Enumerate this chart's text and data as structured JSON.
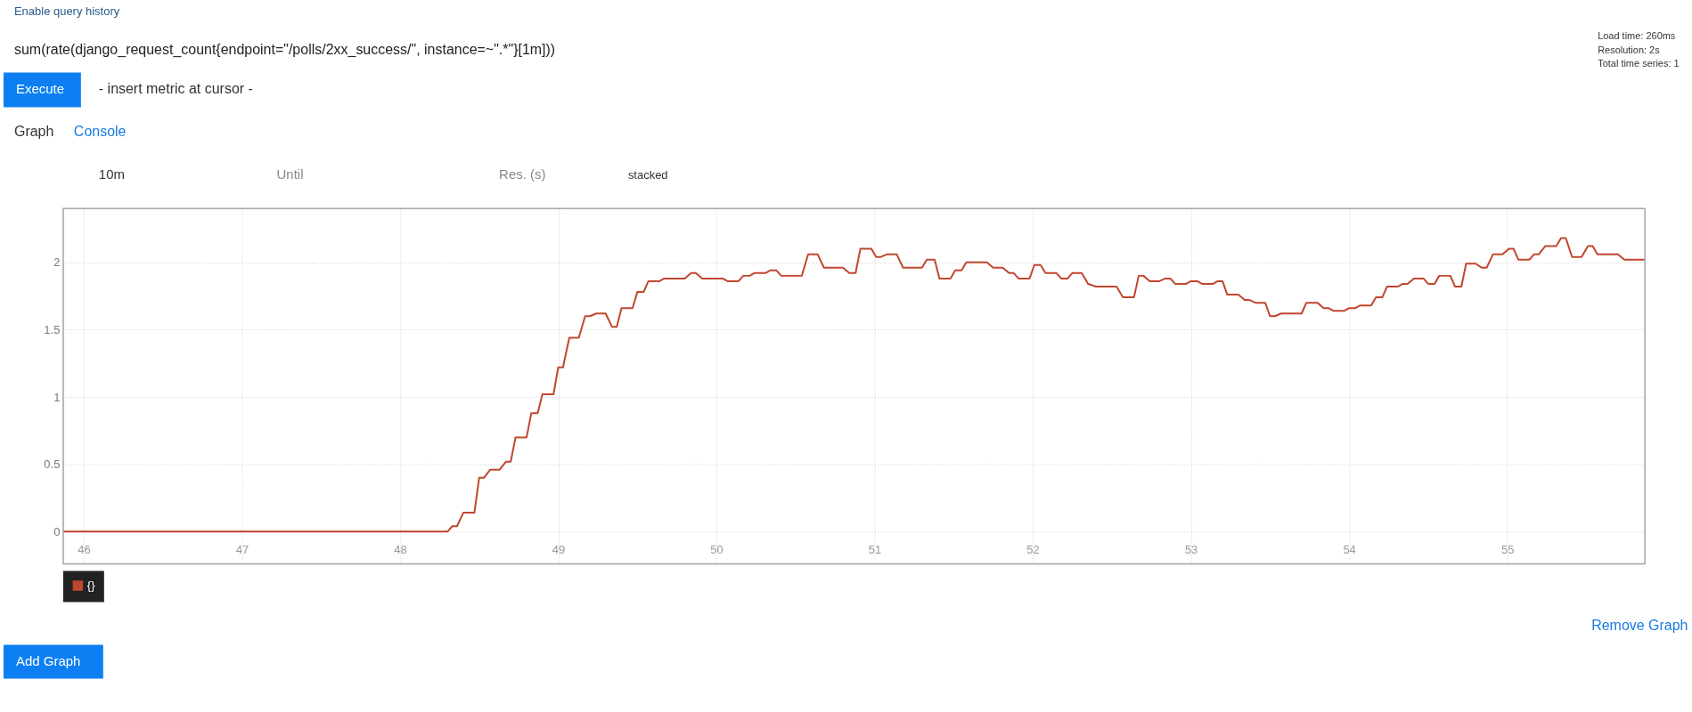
{
  "chart_data": {
    "type": "line",
    "title": "sum(rate(django_request_count{endpoint=\"/polls/2xx_success/\", instance=~\".*\"}[1m]))",
    "annotations": [
      "Enable query history",
      "Execute",
      "- insert metric at cursor -",
      "Graph",
      "Console",
      "10m",
      "Until",
      "Res. (s)",
      "stacked",
      "Load time: 260ms",
      "Resolution: 2s",
      "Total time series: 1",
      "Remove Graph",
      "Add Graph"
    ],
    "series": [
      {
        "name": "{}",
        "color": "#c1462f",
        "x": [
          45.87,
          48.3,
          48.33,
          48.36,
          48.4,
          48.47,
          48.5,
          48.53,
          48.57,
          48.63,
          48.67,
          48.7,
          48.73,
          48.8,
          48.83,
          48.87,
          48.9,
          48.97,
          49.0,
          49.03,
          49.07,
          49.13,
          49.17,
          49.2,
          49.24,
          49.3,
          49.34,
          49.37,
          49.4,
          49.47,
          49.5,
          49.54,
          49.57,
          49.64,
          49.67,
          49.8,
          49.84,
          49.87,
          49.91,
          50.04,
          50.07,
          50.14,
          50.17,
          50.21,
          50.24,
          50.31,
          50.34,
          50.38,
          50.41,
          50.54,
          50.58,
          50.64,
          50.68,
          50.8,
          50.84,
          50.88,
          50.91,
          50.98,
          51.01,
          51.04,
          51.08,
          51.14,
          51.18,
          51.3,
          51.33,
          51.38,
          51.41,
          51.48,
          51.51,
          51.55,
          51.58,
          51.71,
          51.75,
          51.81,
          51.85,
          51.88,
          51.91,
          51.98,
          52.01,
          52.05,
          52.08,
          52.15,
          52.18,
          52.22,
          52.25,
          52.31,
          52.35,
          52.4,
          52.53,
          52.57,
          52.64,
          52.67,
          52.7,
          52.74,
          52.8,
          52.84,
          52.87,
          52.9,
          52.97,
          53.0,
          53.04,
          53.07,
          53.14,
          53.17,
          53.2,
          53.23,
          53.3,
          53.34,
          53.37,
          53.41,
          53.47,
          53.5,
          53.53,
          53.57,
          53.7,
          53.73,
          53.8,
          53.84,
          53.87,
          53.9,
          53.97,
          54.0,
          54.04,
          54.07,
          54.14,
          54.17,
          54.21,
          54.24,
          54.31,
          54.34,
          54.37,
          54.41,
          54.47,
          54.5,
          54.54,
          54.57,
          54.64,
          54.67,
          54.71,
          54.74,
          54.8,
          54.84,
          54.87,
          54.91,
          54.97,
          55.01,
          55.04,
          55.07,
          55.14,
          55.17,
          55.2,
          55.24,
          55.31,
          55.34,
          55.37,
          55.41,
          55.47,
          55.51,
          55.54,
          55.57,
          55.7,
          55.74,
          55.87
        ],
        "values": [
          0,
          0,
          0.04,
          0.04,
          0.14,
          0.14,
          0.4,
          0.4,
          0.46,
          0.46,
          0.52,
          0.52,
          0.7,
          0.7,
          0.88,
          0.88,
          1.02,
          1.02,
          1.22,
          1.22,
          1.44,
          1.44,
          1.6,
          1.6,
          1.62,
          1.62,
          1.52,
          1.52,
          1.66,
          1.66,
          1.78,
          1.78,
          1.86,
          1.86,
          1.88,
          1.88,
          1.92,
          1.92,
          1.88,
          1.88,
          1.86,
          1.86,
          1.9,
          1.9,
          1.92,
          1.92,
          1.94,
          1.94,
          1.9,
          1.9,
          2.06,
          2.06,
          1.96,
          1.96,
          1.92,
          1.92,
          2.1,
          2.1,
          2.04,
          2.04,
          2.06,
          2.06,
          1.96,
          1.96,
          2.02,
          2.02,
          1.88,
          1.88,
          1.94,
          1.94,
          2.0,
          2.0,
          1.96,
          1.96,
          1.92,
          1.92,
          1.88,
          1.88,
          1.98,
          1.98,
          1.92,
          1.92,
          1.88,
          1.88,
          1.92,
          1.92,
          1.84,
          1.82,
          1.82,
          1.74,
          1.74,
          1.9,
          1.9,
          1.86,
          1.86,
          1.88,
          1.88,
          1.84,
          1.84,
          1.86,
          1.86,
          1.84,
          1.84,
          1.86,
          1.86,
          1.76,
          1.76,
          1.72,
          1.72,
          1.7,
          1.7,
          1.6,
          1.6,
          1.62,
          1.62,
          1.7,
          1.7,
          1.66,
          1.66,
          1.64,
          1.64,
          1.66,
          1.66,
          1.68,
          1.68,
          1.74,
          1.74,
          1.82,
          1.82,
          1.84,
          1.84,
          1.88,
          1.88,
          1.84,
          1.84,
          1.9,
          1.9,
          1.82,
          1.82,
          1.99,
          1.99,
          1.96,
          1.96,
          2.06,
          2.06,
          2.1,
          2.1,
          2.02,
          2.02,
          2.06,
          2.06,
          2.12,
          2.12,
          2.18,
          2.18,
          2.04,
          2.04,
          2.12,
          2.12,
          2.06,
          2.06,
          2.02,
          2.02
        ]
      }
    ],
    "xlim": [
      45.87,
      55.87
    ],
    "xticks": [
      46,
      47,
      48,
      49,
      50,
      51,
      52,
      53,
      54,
      55
    ],
    "ylim": [
      -0.24,
      2.4
    ],
    "yticks": [
      0,
      0.5,
      1,
      1.5,
      2
    ],
    "grid": true,
    "legend": "bottom left",
    "marker": "none",
    "line_style": "solid"
  }
}
